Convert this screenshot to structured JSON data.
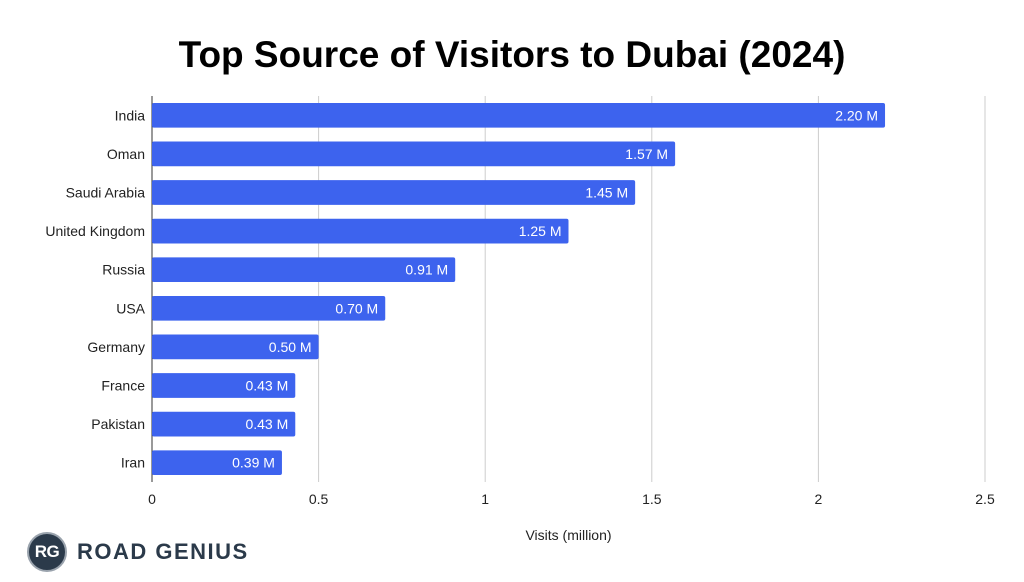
{
  "chart_data": {
    "type": "bar",
    "orientation": "horizontal",
    "title": "Top Source of Visitors to Dubai (2024)",
    "xlabel": "Visits (million)",
    "ylabel": "",
    "categories": [
      "India",
      "Oman",
      "Saudi Arabia",
      "United Kingdom",
      "Russia",
      "USA",
      "Germany",
      "France",
      "Pakistan",
      "Iran"
    ],
    "values": [
      2.2,
      1.57,
      1.45,
      1.25,
      0.91,
      0.7,
      0.5,
      0.43,
      0.43,
      0.39
    ],
    "data_labels": [
      "2.20 M",
      "1.57 M",
      "1.45 M",
      "1.25 M",
      "0.91 M",
      "0.70 M",
      "0.50 M",
      "0.43 M",
      "0.43 M",
      "0.39 M"
    ],
    "xlim": [
      0,
      2.5
    ],
    "xticks": [
      0,
      0.5,
      1,
      1.5,
      2,
      2.5
    ],
    "xtick_labels": [
      "0",
      "0.5",
      "1",
      "1.5",
      "2",
      "2.5"
    ],
    "grid": true,
    "bar_color": "#3D63EE"
  },
  "brand": {
    "badge": "RG",
    "name": "ROAD GENIUS"
  },
  "colors": {
    "title": "#000000",
    "grid": "#CCCCCC",
    "brand": "#2B3A4A"
  }
}
